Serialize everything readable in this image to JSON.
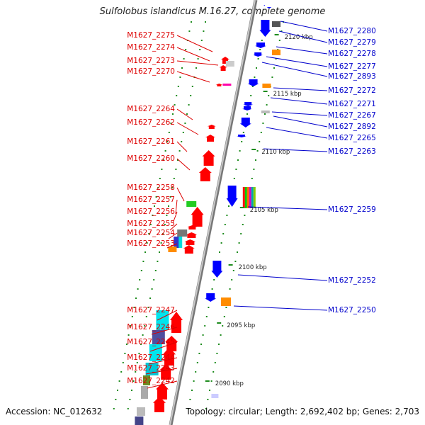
{
  "title": "Sulfolobus islandicus M.16.27, complete genome",
  "footer": {
    "accession": "Accession: NC_012632",
    "stats": "Topology: circular; Length: 2,692,402 bp; Genes: 2,703"
  },
  "colors": {
    "left_label": "#dd0000",
    "right_label": "#0000cc",
    "backbone": "#999999",
    "tick": "#1e8c1e"
  },
  "scale_labels": [
    "2120 kbp",
    "2115 kbp",
    "2110 kbp",
    "2105 kbp",
    "2100 kbp",
    "2095 kbp",
    "2090 kbp"
  ],
  "left_genes": [
    "M1627_2275",
    "M1627_2274",
    "M1627_2273",
    "M1627_2270",
    "M1627_2264",
    "M1627_2262",
    "M1627_2261",
    "M1627_2260",
    "M1627_2258",
    "M1627_2257",
    "M1627_2256",
    "M1627_2255",
    "M1627_2254",
    "M1627_2253",
    "M1627_2247",
    "M1627_2246",
    "M1627_2245",
    "M1627_2244",
    "M1627_2243",
    "M1627_2242"
  ],
  "right_genes": [
    "M1627_2280",
    "M1627_2279",
    "M1627_2278",
    "M1627_2277",
    "M1627_2893",
    "M1627_2272",
    "M1627_2271",
    "M1627_2267",
    "M1627_2892",
    "M1627_2265",
    "M1627_2263",
    "M1627_2259",
    "M1627_2252",
    "M1627_2250"
  ]
}
